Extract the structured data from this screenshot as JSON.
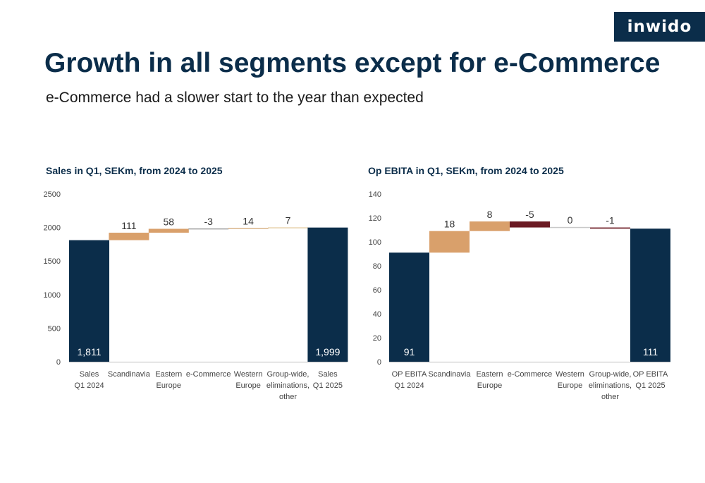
{
  "logo": {
    "text": "inwido"
  },
  "header": {
    "title": "Growth in all segments except for e-Commerce",
    "subtitle": "e-Commerce had a slower start to the year than expected"
  },
  "colors": {
    "total": "#0b2d4a",
    "scandinavia": "#d9a06b",
    "eastern_europe": "#d9a06b",
    "e_commerce_sales": "#a3a3a3",
    "western_europe_sales": "#d9b48a",
    "group_wide_sales": "#e6cfa8",
    "e_commerce_ebita": "#6b1a23",
    "western_europe_ebita": "#c8c8c8",
    "group_wide_ebita": "#6b1a23",
    "axis": "#bfbfbf"
  },
  "chart_data": [
    {
      "type": "waterfall",
      "title": "Sales in Q1, SEKm, from 2024 to 2025",
      "categories": [
        [
          "Sales",
          "Q1 2024"
        ],
        [
          "Scandinavia"
        ],
        [
          "Eastern",
          "Europe"
        ],
        [
          "e-Commerce"
        ],
        [
          "Western",
          "Europe"
        ],
        [
          "Group-wide,",
          "eliminations,",
          "other"
        ],
        [
          "Sales",
          "Q1 2025"
        ]
      ],
      "values": [
        1811,
        111,
        58,
        -3,
        14,
        7,
        1999
      ],
      "kinds": [
        "total",
        "delta",
        "delta",
        "delta",
        "delta",
        "delta",
        "total"
      ],
      "labels": [
        "1,811",
        "111",
        "58",
        "-3",
        "14",
        "7",
        "1,999"
      ],
      "bar_colors": [
        "#0b2d4a",
        "#d9a06b",
        "#d9a06b",
        "#a3a3a3",
        "#d9b48a",
        "#e6cfa8",
        "#0b2d4a"
      ],
      "ylim": [
        0,
        2500
      ],
      "yticks": [
        0,
        500,
        1000,
        1500,
        2000,
        2500
      ],
      "ytick_labels": [
        "0",
        "500",
        "1000",
        "1500",
        "2000",
        "2500"
      ]
    },
    {
      "type": "waterfall",
      "title": "Op EBITA in Q1, SEKm, from 2024 to 2025",
      "categories": [
        [
          "OP EBITA",
          "Q1 2024"
        ],
        [
          "Scandinavia"
        ],
        [
          "Eastern",
          "Europe"
        ],
        [
          "e-Commerce"
        ],
        [
          "Western",
          "Europe"
        ],
        [
          "Group-wide,",
          "eliminations,",
          "other"
        ],
        [
          "OP EBITA",
          "Q1 2025"
        ]
      ],
      "values": [
        91,
        18,
        8,
        -5,
        0,
        -1,
        111
      ],
      "kinds": [
        "total",
        "delta",
        "delta",
        "delta",
        "delta",
        "delta",
        "total"
      ],
      "labels": [
        "91",
        "18",
        "8",
        "-5",
        "0",
        "-1",
        "111"
      ],
      "bar_colors": [
        "#0b2d4a",
        "#d9a06b",
        "#d9a06b",
        "#6b1a23",
        "#c8c8c8",
        "#6b1a23",
        "#0b2d4a"
      ],
      "ylim": [
        0,
        140
      ],
      "yticks": [
        0,
        20,
        40,
        60,
        80,
        100,
        120,
        140
      ],
      "ytick_labels": [
        "0",
        "20",
        "40",
        "60",
        "80",
        "100",
        "120",
        "140"
      ]
    }
  ]
}
